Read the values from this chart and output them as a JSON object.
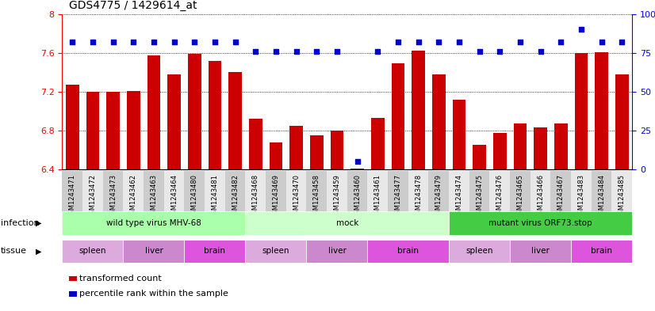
{
  "title": "GDS4775 / 1429614_at",
  "samples": [
    "GSM1243471",
    "GSM1243472",
    "GSM1243473",
    "GSM1243462",
    "GSM1243463",
    "GSM1243464",
    "GSM1243480",
    "GSM1243481",
    "GSM1243482",
    "GSM1243468",
    "GSM1243469",
    "GSM1243470",
    "GSM1243458",
    "GSM1243459",
    "GSM1243460",
    "GSM1243461",
    "GSM1243477",
    "GSM1243478",
    "GSM1243479",
    "GSM1243474",
    "GSM1243475",
    "GSM1243476",
    "GSM1243465",
    "GSM1243466",
    "GSM1243467",
    "GSM1243483",
    "GSM1243484",
    "GSM1243485"
  ],
  "transformed_count": [
    7.27,
    7.2,
    7.2,
    7.21,
    7.57,
    7.38,
    7.59,
    7.52,
    7.4,
    6.92,
    6.68,
    6.85,
    6.75,
    6.8,
    6.41,
    6.93,
    7.49,
    7.62,
    7.38,
    7.12,
    6.65,
    6.78,
    6.87,
    6.83,
    6.87,
    7.6,
    7.61,
    7.38
  ],
  "percentile_rank": [
    82,
    82,
    82,
    82,
    82,
    82,
    82,
    82,
    82,
    76,
    76,
    76,
    76,
    76,
    5,
    76,
    82,
    82,
    82,
    82,
    76,
    76,
    82,
    76,
    82,
    90,
    82,
    82
  ],
  "bar_color": "#cc0000",
  "dot_color": "#0000cc",
  "ylim_left": [
    6.4,
    8.0
  ],
  "ylim_right": [
    0,
    100
  ],
  "yticks_left": [
    6.4,
    6.8,
    7.2,
    7.6,
    8.0
  ],
  "yticks_right": [
    0,
    25,
    50,
    75,
    100
  ],
  "infection_groups": [
    {
      "label": "wild type virus MHV-68",
      "start": 0,
      "end": 9,
      "color": "#aaffaa"
    },
    {
      "label": "mock",
      "start": 9,
      "end": 19,
      "color": "#ccffcc"
    },
    {
      "label": "mutant virus ORF73.stop",
      "start": 19,
      "end": 28,
      "color": "#44cc44"
    }
  ],
  "tissue_groups": [
    {
      "label": "spleen",
      "start": 0,
      "end": 3,
      "color": "#ddaadd"
    },
    {
      "label": "liver",
      "start": 3,
      "end": 6,
      "color": "#cc88cc"
    },
    {
      "label": "brain",
      "start": 6,
      "end": 9,
      "color": "#dd55dd"
    },
    {
      "label": "spleen",
      "start": 9,
      "end": 12,
      "color": "#ddaadd"
    },
    {
      "label": "liver",
      "start": 12,
      "end": 15,
      "color": "#cc88cc"
    },
    {
      "label": "brain",
      "start": 15,
      "end": 19,
      "color": "#dd55dd"
    },
    {
      "label": "spleen",
      "start": 19,
      "end": 22,
      "color": "#ddaadd"
    },
    {
      "label": "liver",
      "start": 22,
      "end": 25,
      "color": "#cc88cc"
    },
    {
      "label": "brain",
      "start": 25,
      "end": 28,
      "color": "#dd55dd"
    }
  ],
  "legend_items": [
    {
      "label": "transformed count",
      "color": "#cc0000"
    },
    {
      "label": "percentile rank within the sample",
      "color": "#0000cc"
    }
  ],
  "stripe_colors": [
    "#cccccc",
    "#e8e8e8"
  ]
}
